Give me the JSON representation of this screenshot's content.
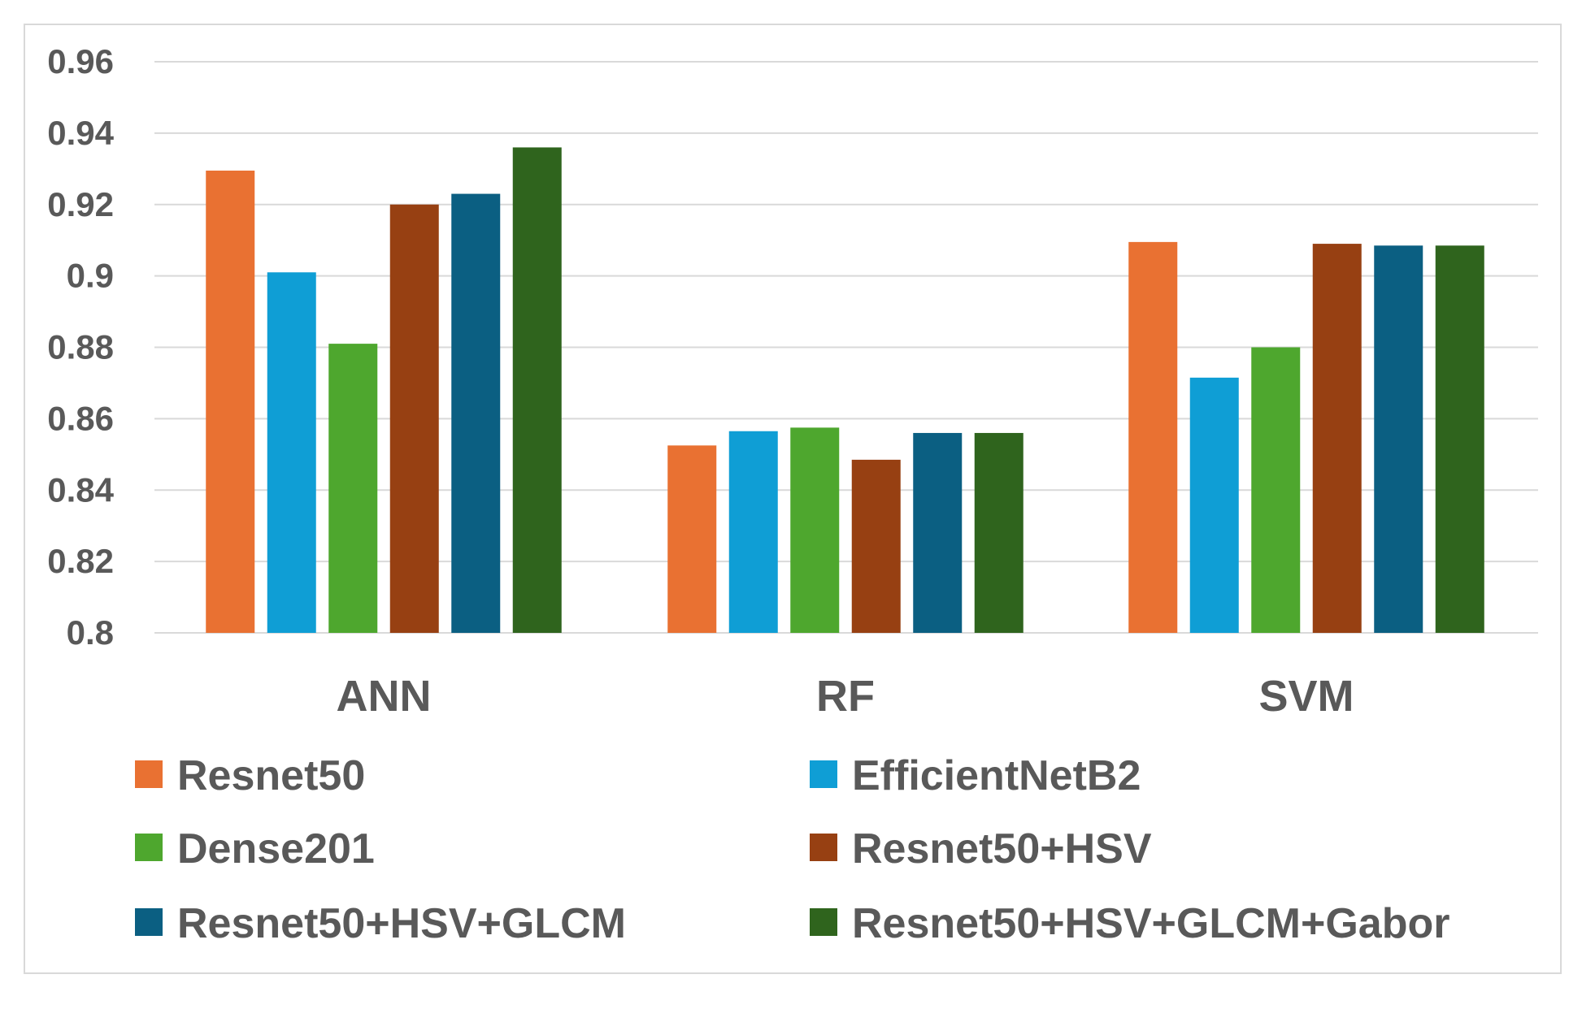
{
  "chart_data": {
    "type": "bar",
    "title": "",
    "xlabel": "",
    "ylabel": "",
    "categories": [
      "ANN",
      "RF",
      "SVM"
    ],
    "ylim": [
      0.8,
      0.96
    ],
    "yticks": [
      0.8,
      0.82,
      0.84,
      0.86,
      0.88,
      0.9,
      0.92,
      0.94,
      0.96
    ],
    "ytick_labels": [
      "0.8",
      "0.82",
      "0.84",
      "0.86",
      "0.88",
      "0.9",
      "0.92",
      "0.94",
      "0.96"
    ],
    "grid": true,
    "legend_position": "bottom",
    "series": [
      {
        "name": "Resnet50",
        "color": "#E97132",
        "values": [
          0.9295,
          0.8525,
          0.9095
        ]
      },
      {
        "name": "EfficientNetB2",
        "color": "#0F9ED5",
        "values": [
          0.901,
          0.8565,
          0.8715
        ]
      },
      {
        "name": "Dense201",
        "color": "#4EA72E",
        "values": [
          0.881,
          0.8575,
          0.88
        ]
      },
      {
        "name": "Resnet50+HSV",
        "color": "#974012",
        "values": [
          0.92,
          0.8485,
          0.909
        ]
      },
      {
        "name": "Resnet50+HSV+GLCM",
        "color": "#0B5F82",
        "values": [
          0.923,
          0.856,
          0.9085
        ]
      },
      {
        "name": "Resnet50+HSV+GLCM+Gabor",
        "color": "#2F641D",
        "values": [
          0.936,
          0.856,
          0.9085
        ]
      }
    ]
  }
}
